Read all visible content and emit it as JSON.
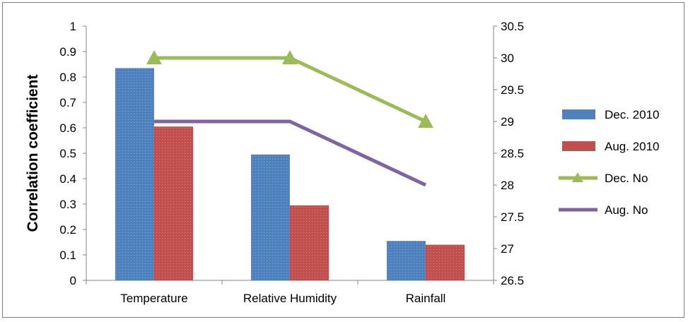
{
  "chart_data": {
    "type": "bar",
    "categories": [
      "Temperature",
      "Relative Humidity",
      "Rainfall"
    ],
    "ylabel": "Correlation coefficient",
    "ylim": [
      0,
      1
    ],
    "yticks": [
      "0",
      "0.1",
      "0.2",
      "0.3",
      "0.4",
      "0.5",
      "0.6",
      "0.7",
      "0.8",
      "0.9",
      "1"
    ],
    "y2lim": [
      26.5,
      30.5
    ],
    "y2ticks": [
      "26.5",
      "27",
      "27.5",
      "28",
      "28.5",
      "29",
      "29.5",
      "30",
      "30.5"
    ],
    "bar_series": [
      {
        "name": "Dec. 2010",
        "color": "#4f81bd",
        "values": [
          0.835,
          0.495,
          0.155
        ]
      },
      {
        "name": "Aug. 2010",
        "color": "#c0504d",
        "values": [
          0.605,
          0.295,
          0.14
        ]
      }
    ],
    "line_series": [
      {
        "name": "Dec. No",
        "color": "#9bbb59",
        "marker": "triangle",
        "axis": "secondary",
        "values": [
          30,
          30,
          29
        ]
      },
      {
        "name": "Aug. No",
        "color": "#8064a2",
        "marker": "none",
        "axis": "secondary",
        "values": [
          29,
          29,
          28
        ]
      }
    ],
    "legend": "right",
    "grid": false
  }
}
